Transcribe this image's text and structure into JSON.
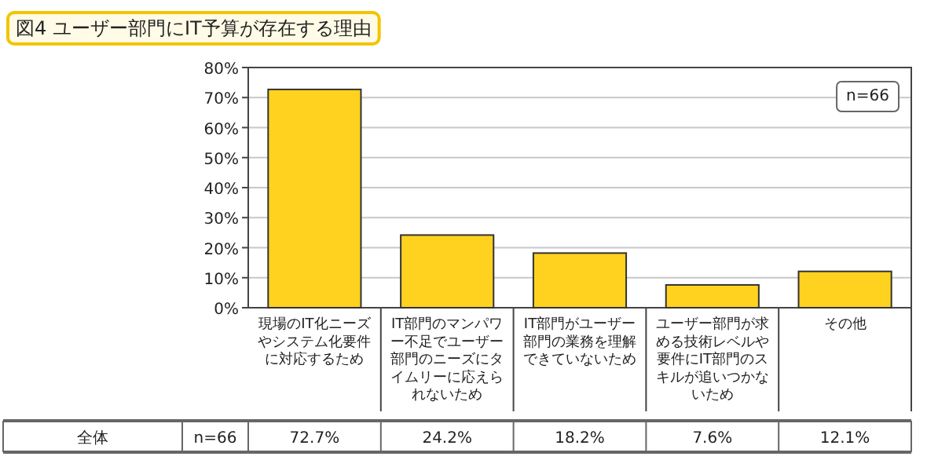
{
  "chart_data": {
    "type": "bar",
    "title": "図4 ユーザー部門にIT予算が存在する理由",
    "categories": [
      "現場のIT化ニーズやシステム化要件に対応するため",
      "IT部門のマンパワー不足でユーザー部門のニーズにタイムリーに応えられないため",
      "IT部門がユーザー部門の業務を理解できていないため",
      "ユーザー部門が求める技術レベルや要件にIT部門のスキルが追いつかないため",
      "その他"
    ],
    "values": [
      72.7,
      24.2,
      18.2,
      7.6,
      12.1
    ],
    "value_labels": [
      "72.7%",
      "24.2%",
      "18.2%",
      "7.6%",
      "12.1%"
    ],
    "color": "#ffd21f",
    "ylim": [
      0,
      80
    ],
    "yticks": [
      {
        "value": 0,
        "label": "0%"
      },
      {
        "value": 10,
        "label": "10%"
      },
      {
        "value": 20,
        "label": "20%"
      },
      {
        "value": 30,
        "label": "30%"
      },
      {
        "value": 40,
        "label": "40%"
      },
      {
        "value": 50,
        "label": "50%"
      },
      {
        "value": 60,
        "label": "60%"
      },
      {
        "value": 70,
        "label": "70%"
      },
      {
        "value": 80,
        "label": "80%"
      }
    ],
    "grid": "y",
    "annotations": [
      "n=66",
      "全体",
      "n=66"
    ]
  }
}
